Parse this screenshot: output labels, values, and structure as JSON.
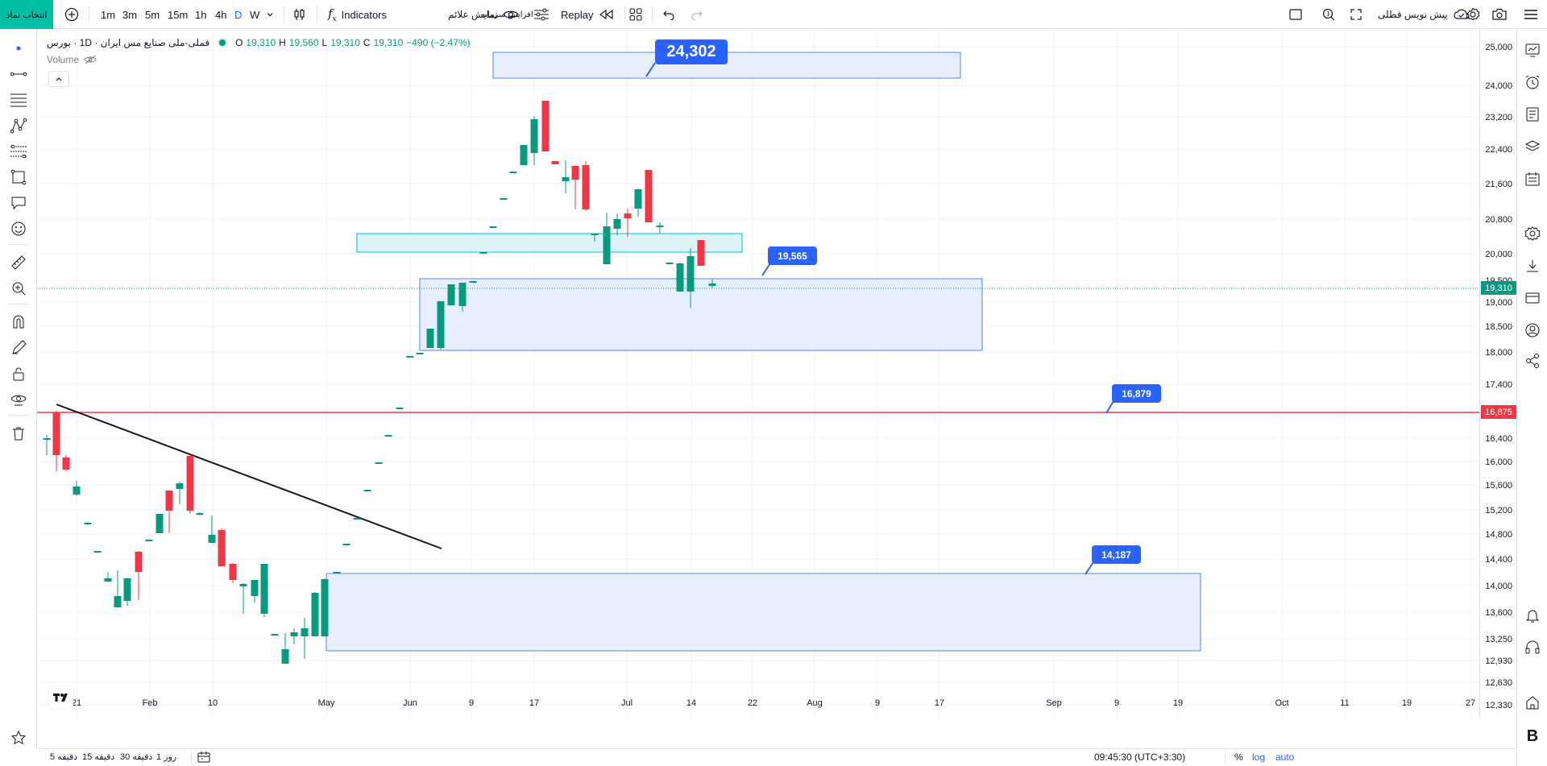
{
  "topbar": {
    "symbol_button": "انتخاب نماد",
    "timeframes": [
      "1m",
      "3m",
      "5m",
      "15m",
      "1h",
      "4h",
      "D",
      "W"
    ],
    "active_timeframe": "D",
    "indicators_label": "Indicators",
    "alerts_label": "نمایش علائم",
    "capital_label": "افزایش سرمایه",
    "replay_label": "Replay",
    "futures_label": "پیش نویس قطلی"
  },
  "legend": {
    "title": "فملی-ملی صنایع مس ایران · 1D · بورس",
    "open_label": "O",
    "open": "19,310",
    "high_label": "H",
    "high": "19,560",
    "low_label": "L",
    "low": "19,310",
    "close_label": "C",
    "close": "19,310",
    "change": "−490 (−2.47%)",
    "volume_label": "Volume"
  },
  "price_axis": {
    "ticks": [
      "25,000",
      "24,000",
      "23,200",
      "22,400",
      "21,600",
      "20,800",
      "20,000",
      "19,500",
      "19,000",
      "18,500",
      "18,000",
      "17,400",
      "16,400",
      "16,000",
      "15,600",
      "15,200",
      "14,800",
      "14,400",
      "14,000",
      "13,600",
      "13,250",
      "12,930",
      "12,630",
      "12,330"
    ],
    "current_price": "19,310",
    "line_price": "16,875"
  },
  "time_axis": {
    "ticks": [
      "21",
      "Feb",
      "10",
      "May",
      "Jun",
      "9",
      "17",
      "Jul",
      "14",
      "22",
      "Aug",
      "9",
      "17",
      "Sep",
      "9",
      "19",
      "Oct",
      "11",
      "19",
      "27"
    ]
  },
  "callouts": [
    "24,302",
    "19,565",
    "16,879",
    "14,187"
  ],
  "bottombar": {
    "ranges": [
      "5 دقیقه",
      "15 دقیقه",
      "30 دقیقه",
      "1 روز"
    ],
    "clock": "09:45:30 (UTC+3:30)",
    "percent": "%",
    "log": "log",
    "auto": "auto"
  },
  "colors": {
    "up": "#089981",
    "down": "#f23645",
    "accent": "#2962ff",
    "zone_fill": "#e3ebfd",
    "zone_border": "#5b85e8",
    "teal_zone": "#00bcd4",
    "symbol_button_bg": "#00bfa5"
  }
}
